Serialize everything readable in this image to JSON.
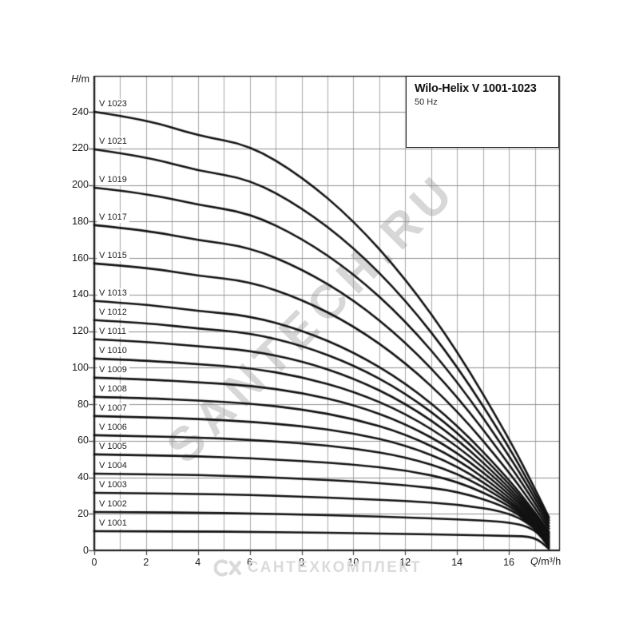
{
  "page": {
    "background": "#ffffff"
  },
  "title_box": {
    "title": "Wilo-Helix V 1001-1023",
    "subtitle": "50 Hz"
  },
  "axes": {
    "y_unit_italic": "H",
    "y_unit_rest": "/m",
    "x_unit_italic": "Q",
    "x_unit_rest": "/m³/h"
  },
  "watermarks": {
    "diagonal": "SANTECH.RU",
    "bottom": "САНТЕХКОМПЛЕКТ"
  },
  "colors": {
    "curve": "#111111",
    "grid_vertical": "#a8a8a8",
    "grid_horizontal": "#8f8f8f",
    "frame": "#1c1c1c",
    "tick": "#444444",
    "text": "#1c1c1c",
    "diagonal_watermark": "rgba(150,150,150,0.38)",
    "bottom_watermark": "#dadada"
  },
  "chart_data": {
    "type": "line",
    "title": "Wilo-Helix V 1001-1023",
    "subtitle": "50 Hz",
    "xlabel": "Q/m³/h",
    "ylabel": "H/m",
    "xlim": [
      0,
      17.94
    ],
    "ylim": [
      0,
      259.7
    ],
    "x_ticks": [
      0,
      2,
      4,
      6,
      8,
      10,
      12,
      14,
      16
    ],
    "y_ticks": [
      0,
      20,
      40,
      60,
      80,
      100,
      120,
      140,
      160,
      180,
      200,
      220,
      240
    ],
    "x_minor_grid_step": 1,
    "y_grid_step": 20,
    "grid": "on",
    "legend_position": "labels-on-curves-left",
    "flows_m3h": [
      0,
      2,
      4,
      6,
      8,
      10,
      12,
      14,
      16,
      17,
      17.55
    ],
    "series": [
      {
        "name": "V 1001",
        "shutoff_head_m": 10.5,
        "heads_m": [
          10.5,
          10.4,
          10.3,
          10.1,
          9.8,
          9.4,
          9.0,
          8.5,
          7.9,
          7.5,
          0.8
        ]
      },
      {
        "name": "V 1002",
        "shutoff_head_m": 21,
        "heads_m": [
          21,
          20.8,
          20.6,
          20.2,
          19.6,
          18.9,
          18.0,
          17.0,
          15.6,
          11.9,
          1.6
        ]
      },
      {
        "name": "V 1003",
        "shutoff_head_m": 31.5,
        "heads_m": [
          31.5,
          31.2,
          30.9,
          30.3,
          29.4,
          28.3,
          27.0,
          25.3,
          20.9,
          12.6,
          2.4
        ]
      },
      {
        "name": "V 1004",
        "shutoff_head_m": 42,
        "heads_m": [
          42,
          41.6,
          41.2,
          40.4,
          39.2,
          37.7,
          35.8,
          32.5,
          23.5,
          12.7,
          3.1
        ]
      },
      {
        "name": "V 1005",
        "shutoff_head_m": 52.5,
        "heads_m": [
          52.5,
          52.0,
          51.5,
          50.4,
          48.9,
          47.0,
          44.0,
          38.1,
          25.1,
          13.1,
          3.9
        ]
      },
      {
        "name": "V 1006",
        "shutoff_head_m": 63,
        "heads_m": [
          63,
          62.4,
          61.8,
          60.5,
          58.7,
          55.9,
          51.2,
          42.6,
          26.5,
          13.7,
          4.7
        ]
      },
      {
        "name": "V 1007",
        "shutoff_head_m": 73.5,
        "heads_m": [
          73.5,
          72.8,
          72.0,
          70.4,
          68.1,
          64.2,
          57.7,
          46.6,
          27.9,
          14.4,
          5.5
        ]
      },
      {
        "name": "V 1008",
        "shutoff_head_m": 84,
        "heads_m": [
          84,
          83.3,
          82.0,
          80.4,
          77.3,
          72.1,
          63.8,
          50.3,
          29.5,
          15.3,
          6.3
        ]
      },
      {
        "name": "V 1009",
        "shutoff_head_m": 94.5,
        "heads_m": [
          94.5,
          93.6,
          92.0,
          90.2,
          86.3,
          79.8,
          69.5,
          54.0,
          31.2,
          16.4,
          7.1
        ]
      },
      {
        "name": "V 1010",
        "shutoff_head_m": 105,
        "heads_m": [
          105,
          103.9,
          101.9,
          99.9,
          95.0,
          87.2,
          75.1,
          57.6,
          33.0,
          17.4,
          7.8
        ]
      },
      {
        "name": "V 1011",
        "shutoff_head_m": 115.5,
        "heads_m": [
          115.5,
          114.1,
          111.7,
          109.4,
          103.7,
          94.4,
          80.7,
          61.3,
          34.8,
          18.5,
          8.6
        ]
      },
      {
        "name": "V 1012",
        "shutoff_head_m": 126,
        "heads_m": [
          126,
          124.4,
          121.4,
          119.0,
          112.2,
          101.6,
          86.3,
          65.1,
          36.9,
          19.6,
          9.4
        ]
      },
      {
        "name": "V 1013",
        "shutoff_head_m": 136.5,
        "heads_m": [
          136.5,
          134.6,
          131.0,
          128.4,
          120.6,
          108.7,
          91.8,
          68.9,
          39.0,
          20.9,
          10.2
        ]
      },
      {
        "name": "V 1015",
        "shutoff_head_m": 157,
        "heads_m": [
          157,
          154.9,
          150.3,
          147.2,
          137.5,
          123.1,
          103.0,
          76.8,
          43.1,
          23.4,
          11.8
        ]
      },
      {
        "name": "V 1017",
        "shutoff_head_m": 178,
        "heads_m": [
          178,
          175.2,
          169.8,
          165.9,
          154.2,
          137.3,
          114.4,
          84.7,
          47.6,
          26.1,
          13.3
        ]
      },
      {
        "name": "V 1019",
        "shutoff_head_m": 198.5,
        "heads_m": [
          198.5,
          195.4,
          189.1,
          184.6,
          171.0,
          151.7,
          125.9,
          92.9,
          52.2,
          28.7,
          14.9
        ]
      },
      {
        "name": "V 1021",
        "shutoff_head_m": 219.5,
        "heads_m": [
          219.5,
          215.5,
          207.8,
          203.2,
          187.8,
          166.1,
          137.4,
          101.2,
          56.8,
          31.2,
          16.5
        ]
      },
      {
        "name": "V 1023",
        "shutoff_head_m": 240,
        "heads_m": [
          240,
          235.8,
          226.9,
          221.9,
          204.8,
          180.7,
          149.0,
          109.6,
          61.5,
          33.9,
          18.0
        ]
      }
    ]
  }
}
